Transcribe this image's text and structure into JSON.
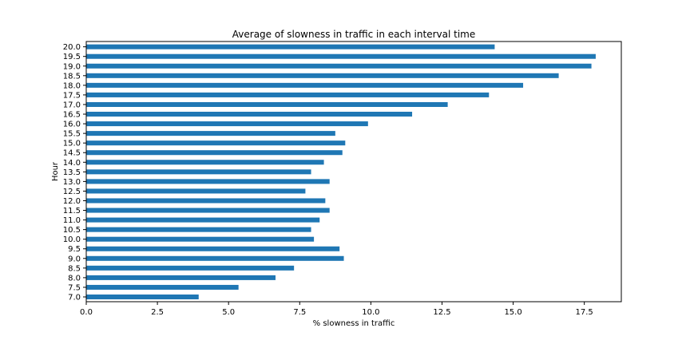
{
  "chart_data": {
    "type": "bar",
    "orientation": "horizontal",
    "title": "Average of slowness in traffic in each interval time",
    "xlabel": "% slowness in traffic",
    "ylabel": "Hour",
    "categories": [
      "7.0",
      "7.5",
      "8.0",
      "8.5",
      "9.0",
      "9.5",
      "10.0",
      "10.5",
      "11.0",
      "11.5",
      "12.0",
      "12.5",
      "13.0",
      "13.5",
      "14.0",
      "14.5",
      "15.0",
      "15.5",
      "16.0",
      "16.5",
      "17.0",
      "17.5",
      "18.0",
      "18.5",
      "19.0",
      "19.5",
      "20.0"
    ],
    "values": [
      3.95,
      5.35,
      6.65,
      7.3,
      9.05,
      8.9,
      8.0,
      7.9,
      8.2,
      8.55,
      8.4,
      7.7,
      8.55,
      7.9,
      8.35,
      9.0,
      9.1,
      8.75,
      9.9,
      11.45,
      12.7,
      14.15,
      15.35,
      16.6,
      17.75,
      17.9,
      14.35
    ],
    "xlim": [
      0,
      18.8
    ],
    "xticks": [
      "0.0",
      "2.5",
      "5.0",
      "7.5",
      "10.0",
      "12.5",
      "15.0",
      "17.5"
    ],
    "bar_color": "#1f77b4",
    "grid": false,
    "legend": "none"
  }
}
